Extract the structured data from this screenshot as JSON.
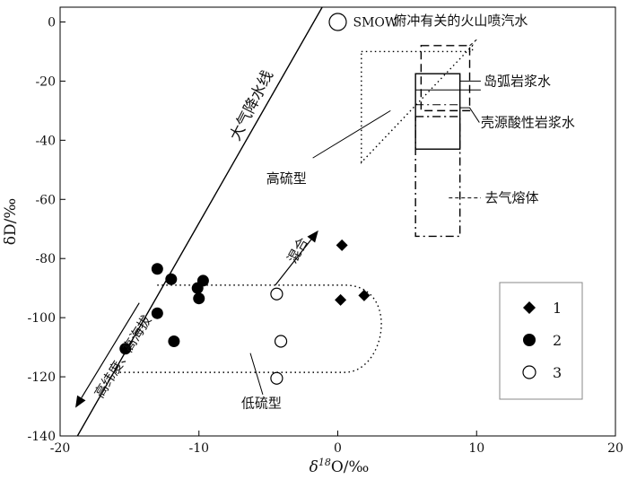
{
  "chart_data": {
    "type": "scatter",
    "xlabel": "δ¹⁸O/‰",
    "xlabel_parts": {
      "prefix": "δ",
      "sup": "18",
      "suffix": "O/‰"
    },
    "ylabel": "δD/‰",
    "xlim": [
      -20,
      20
    ],
    "ylim": [
      -140,
      5
    ],
    "xticks": [
      -20,
      -10,
      0,
      10,
      20
    ],
    "yticks": [
      0,
      -20,
      -40,
      -60,
      -80,
      -100,
      -120,
      -140
    ],
    "grid": false,
    "legend_position": "right",
    "legend": [
      {
        "label": "1",
        "marker": "diamond"
      },
      {
        "label": "2",
        "marker": "filled-circle"
      },
      {
        "label": "3",
        "marker": "open-circle"
      }
    ],
    "series": [
      {
        "name": "1",
        "marker": "diamond",
        "points": [
          [
            0.3,
            -75.5
          ],
          [
            0.2,
            -94
          ],
          [
            1.9,
            -92.5
          ]
        ]
      },
      {
        "name": "2",
        "marker": "filled-circle",
        "points": [
          [
            -13,
            -83.5
          ],
          [
            -12,
            -87
          ],
          [
            -13,
            -98.5
          ],
          [
            -11.8,
            -108
          ],
          [
            -15.3,
            -110.5
          ],
          [
            -10.1,
            -90
          ],
          [
            -9.7,
            -87.5
          ],
          [
            -10,
            -93.5
          ]
        ]
      },
      {
        "name": "3",
        "marker": "open-circle",
        "points": [
          [
            -4.4,
            -92
          ],
          [
            -4.1,
            -108
          ],
          [
            -4.4,
            -120.5
          ]
        ]
      }
    ],
    "meteoric_water_line": {
      "label": "大气降水线",
      "x": [
        -18.75,
        -1
      ],
      "y": [
        -140,
        6
      ]
    },
    "smow": {
      "label": "SMOW",
      "x": 0,
      "y": 0
    },
    "fields": [
      {
        "label": "俯冲有关的火山喷汽水",
        "x": [
          6,
          9.5
        ],
        "y": [
          -8,
          -30
        ],
        "style": "dashed"
      },
      {
        "label": "岛弧岩浆水",
        "x": [
          5.6,
          8.8
        ],
        "y": [
          -17.5,
          -43
        ],
        "style": "solid"
      },
      {
        "label": "壳源酸性岩浆水",
        "x": [
          5.6,
          8.8
        ],
        "y": [
          -22.5,
          -32
        ],
        "style": "dash-dot"
      },
      {
        "label": "去气熔体",
        "x": [
          5.6,
          8.8
        ],
        "y": [
          -32,
          -72.5
        ],
        "style": "dash-dot"
      }
    ],
    "annotations": [
      {
        "text": "高硫型",
        "x": -3.7,
        "y": -54.5
      },
      {
        "text": "低硫型",
        "x": -5.5,
        "y": -130.5
      },
      {
        "text": "混合",
        "x": -2.6,
        "y": -78
      },
      {
        "text": "高纬度、高海拔",
        "x": -15.2,
        "y": -114
      }
    ]
  }
}
